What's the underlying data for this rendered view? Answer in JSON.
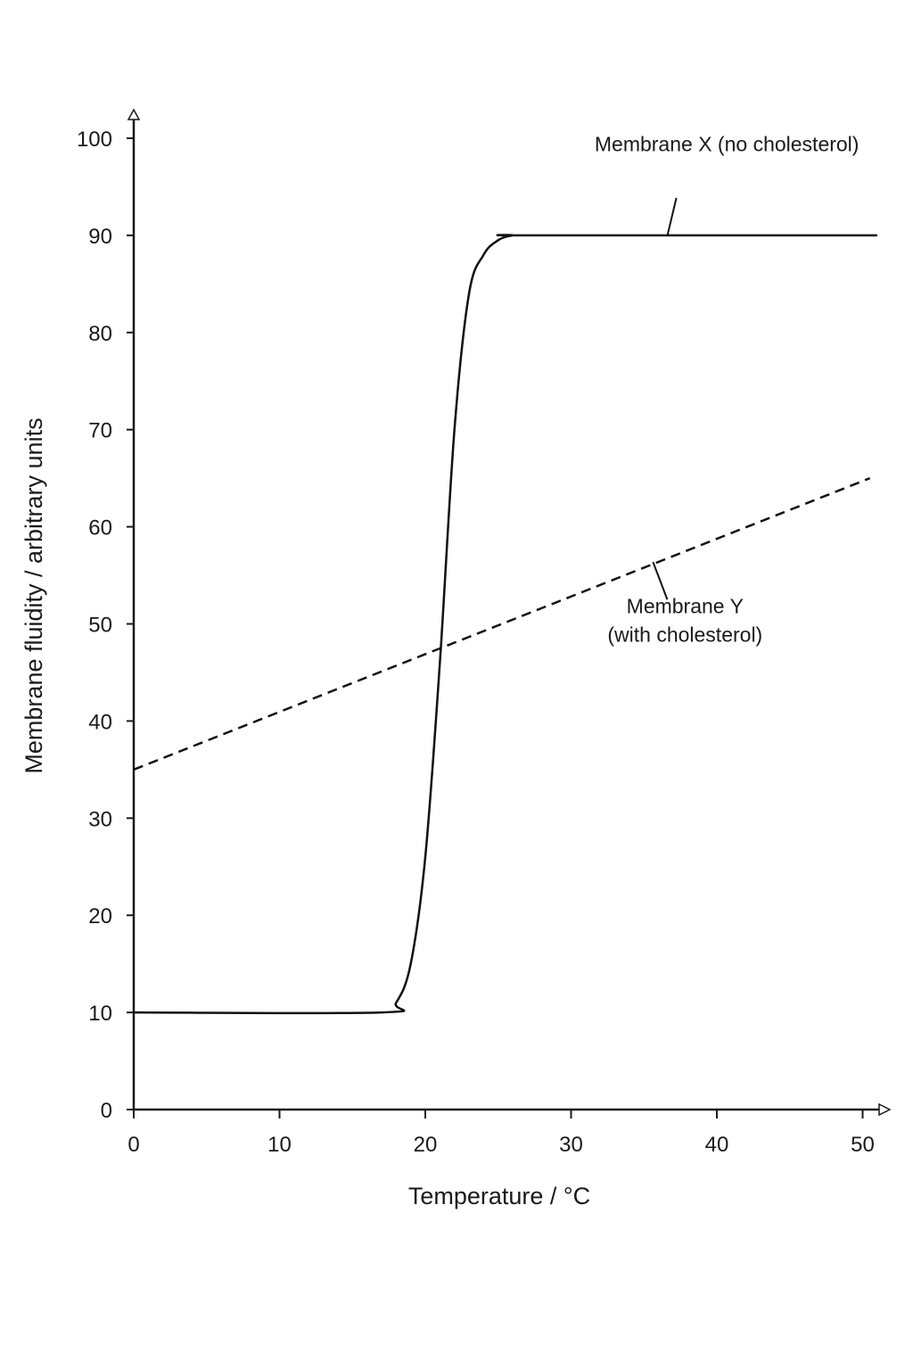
{
  "chart_data": {
    "type": "line",
    "title": "",
    "xlabel": "Temperature / °C",
    "ylabel": "Membrane fluidity / arbitrary units",
    "xlim": [
      0,
      51
    ],
    "ylim": [
      0,
      100
    ],
    "x_ticks": [
      0,
      10,
      20,
      30,
      40,
      50
    ],
    "y_ticks": [
      0,
      10,
      20,
      30,
      40,
      50,
      60,
      70,
      80,
      90,
      100
    ],
    "x_tick_labels": [
      "0",
      "10",
      "20",
      "30",
      "40",
      "50"
    ],
    "y_tick_labels": [
      "0",
      "10",
      "20",
      "30",
      "40",
      "50",
      "60",
      "70",
      "80",
      "90",
      "100"
    ],
    "grid": false,
    "series": [
      {
        "label": "Membrane X (no cholesterol)",
        "style": "solid",
        "color": "#111111",
        "x": [
          0,
          17,
          18,
          19,
          20,
          21,
          22,
          23,
          24,
          25,
          26,
          27,
          51
        ],
        "y": [
          10,
          10,
          11,
          15,
          26,
          46,
          70,
          84,
          88,
          89.5,
          90,
          90,
          90
        ]
      },
      {
        "label": "Membrane Y (with cholesterol)",
        "label_lines": [
          "Membrane Y",
          "(with cholesterol)"
        ],
        "style": "dashed",
        "color": "#111111",
        "x": [
          0,
          50.5
        ],
        "y": [
          35,
          65
        ]
      }
    ],
    "annotations": [
      {
        "series": 0,
        "point": [
          36,
          90
        ],
        "text_anchor_point": [
          40.5,
          95
        ]
      },
      {
        "series": 1,
        "point": [
          35.5,
          56
        ],
        "text_anchor_point": [
          38,
          51
        ]
      }
    ]
  }
}
